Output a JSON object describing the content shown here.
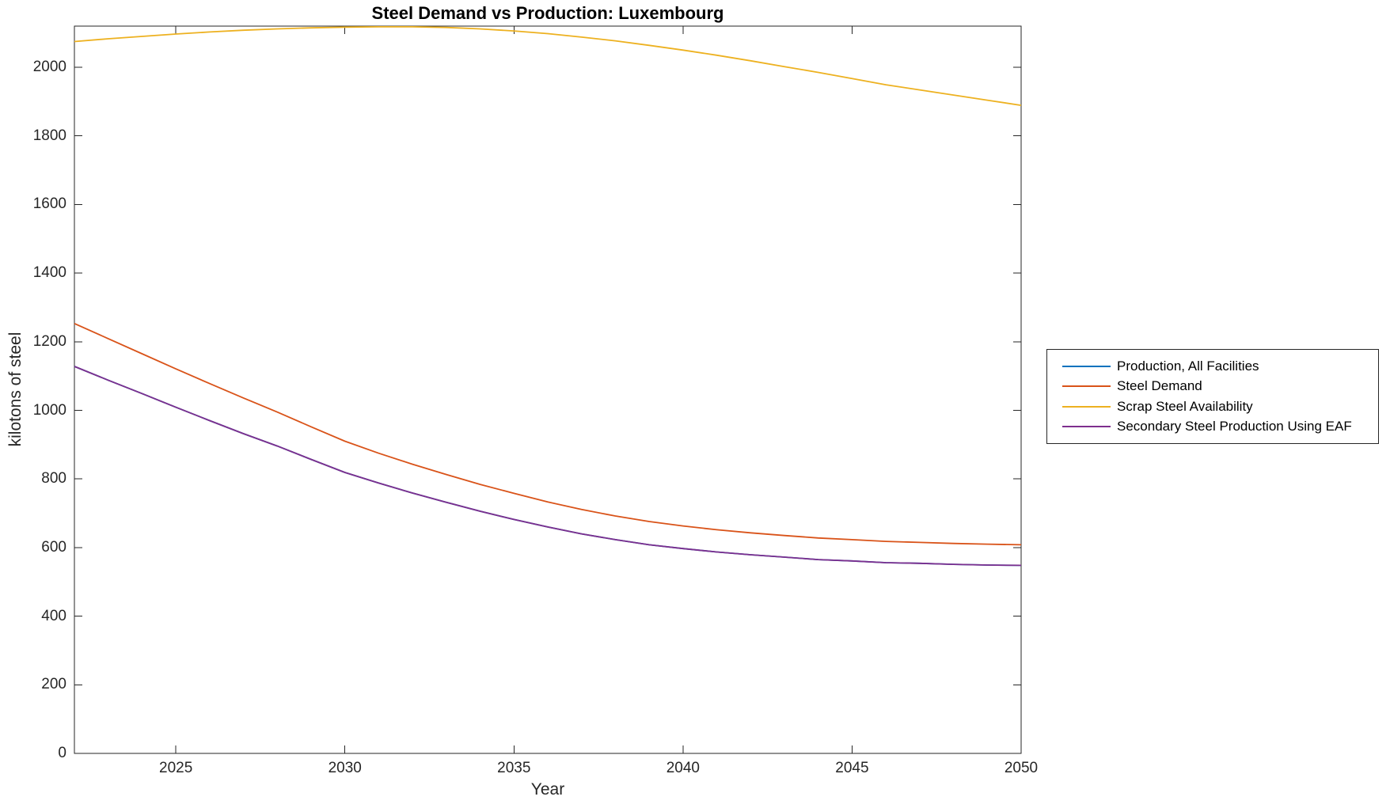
{
  "figure": {
    "title": "Steel Demand vs Production: Luxembourg",
    "xlabel": "Year",
    "ylabel": "kilotons of steel",
    "background_color": "#FFFFFF",
    "axis_color": "#262626"
  },
  "chart_data": {
    "type": "line",
    "title": "Steel Demand vs Production: Luxembourg",
    "xlabel": "Year",
    "ylabel": "kilotons of steel",
    "xlim": [
      2022,
      2050
    ],
    "ylim": [
      0,
      2120
    ],
    "xticks": [
      2025,
      2030,
      2035,
      2040,
      2045,
      2050
    ],
    "yticks": [
      0,
      200,
      400,
      600,
      800,
      1000,
      1200,
      1400,
      1600,
      1800,
      2000
    ],
    "grid": false,
    "legend_position": "right-outside",
    "x": [
      2022,
      2023,
      2024,
      2025,
      2026,
      2027,
      2028,
      2029,
      2030,
      2031,
      2032,
      2033,
      2034,
      2035,
      2036,
      2037,
      2038,
      2039,
      2040,
      2041,
      2042,
      2043,
      2044,
      2045,
      2046,
      2047,
      2048,
      2049,
      2050
    ],
    "series": [
      {
        "name": "Production, All Facilities",
        "color": "#0072BD",
        "values": [
          1128,
          1088,
          1049,
          1009,
          970,
          932,
          896,
          857,
          819,
          788,
          759,
          732,
          706,
          682,
          660,
          640,
          623,
          608,
          597,
          587,
          579,
          572,
          565,
          561,
          556,
          554,
          551,
          549,
          548
        ]
      },
      {
        "name": "Steel Demand",
        "color": "#D95319",
        "values": [
          1253,
          1209,
          1165,
          1121,
          1078,
          1036,
          995,
          952,
          910,
          875,
          843,
          813,
          784,
          758,
          733,
          711,
          692,
          676,
          663,
          652,
          643,
          635,
          628,
          623,
          618,
          615,
          612,
          610,
          608
        ]
      },
      {
        "name": "Scrap Steel Availability",
        "color": "#EDB120",
        "values": [
          2075,
          2083,
          2090,
          2097,
          2103,
          2108,
          2112,
          2115,
          2117,
          2118,
          2118,
          2116,
          2112,
          2106,
          2098,
          2088,
          2077,
          2064,
          2050,
          2035,
          2019,
          2002,
          1985,
          1967,
          1949,
          1934,
          1919,
          1904,
          1889
        ]
      },
      {
        "name": "Secondary Steel Production Using EAF",
        "color": "#7E2F8E",
        "values": [
          1128,
          1088,
          1049,
          1009,
          970,
          932,
          896,
          857,
          819,
          788,
          759,
          732,
          706,
          682,
          660,
          640,
          623,
          608,
          597,
          587,
          579,
          572,
          565,
          561,
          556,
          554,
          551,
          549,
          548
        ]
      }
    ]
  }
}
